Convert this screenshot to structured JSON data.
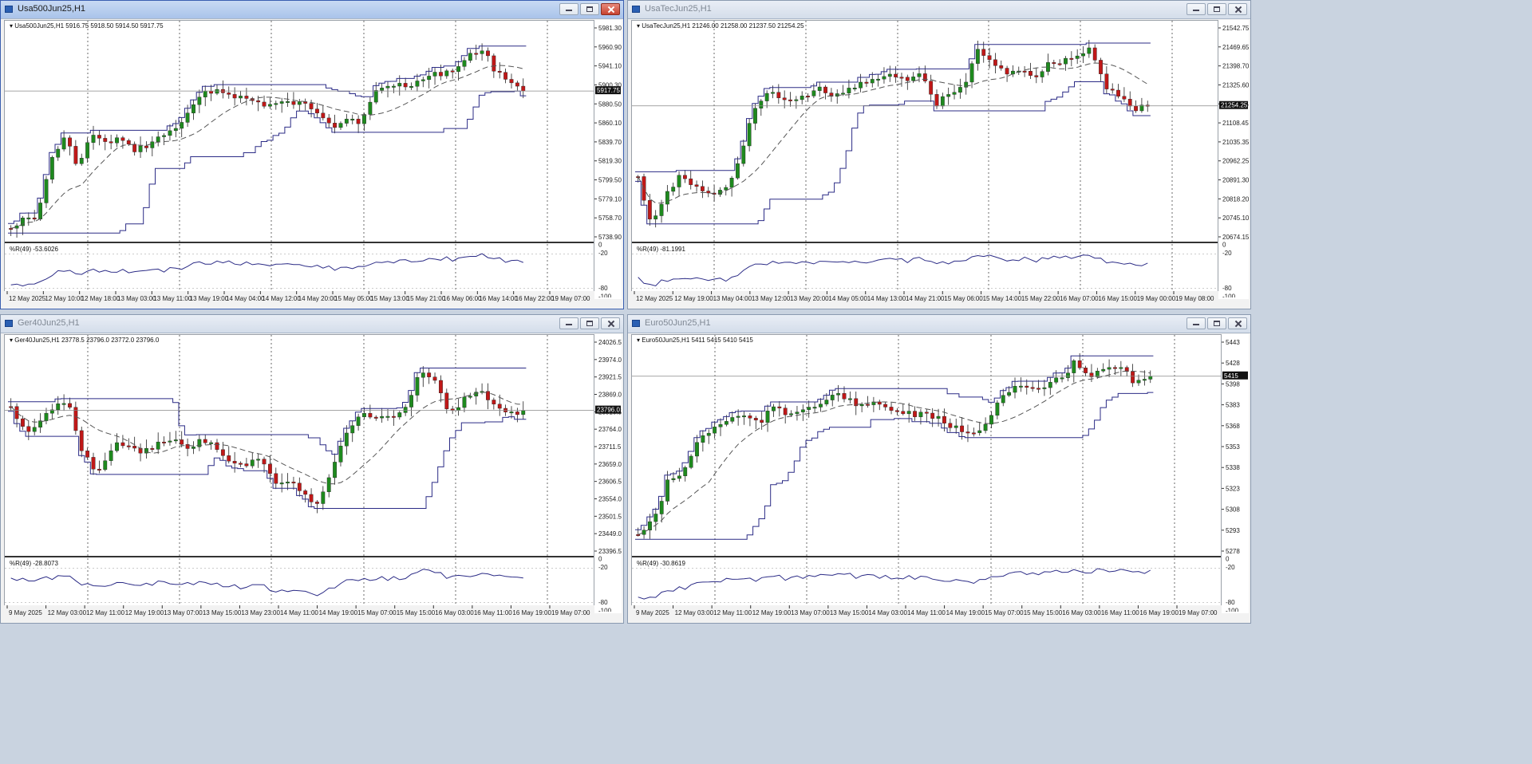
{
  "windows": [
    {
      "id": "usa500",
      "title": "Usa500Jun25,H1",
      "active": true,
      "legend": "Usa500Jun25,H1  5916.75 5918.50 5914.50 5917.75",
      "wpr_legend": "%R(49) -53.6026",
      "price_label": "5917.75",
      "price_last": 5917.75,
      "y_ticks": [
        "5981.30",
        "5960.90",
        "5941.10",
        "5900.30",
        "5880.50",
        "5860.10",
        "5839.70",
        "5819.30",
        "5799.50",
        "5779.10",
        "5758.70",
        "5738.90"
      ],
      "wpr_ticks": [
        "0",
        "-20",
        "-80",
        "-100"
      ],
      "x_ticks": [
        "12 May 2025",
        "12 May 10:00",
        "12 May 18:00",
        "13 May 03:00",
        "13 May 11:00",
        "13 May 19:00",
        "14 May 04:00",
        "14 May 12:00",
        "14 May 20:00",
        "15 May 05:00",
        "15 May 13:00",
        "15 May 21:00",
        "16 May 06:00",
        "16 May 14:00",
        "16 May 22:00",
        "19 May 07:00"
      ]
    },
    {
      "id": "usatec",
      "title": "UsaTecJun25,H1",
      "active": false,
      "legend": "UsaTecJun25,H1  21246.00 21258.00 21237.50 21254.25",
      "wpr_legend": "%R(49) -81.1991",
      "price_label": "21254.25",
      "price_last": 21254.25,
      "y_ticks": [
        "21542.75",
        "21469.65",
        "21398.70",
        "21325.60",
        "21181.55",
        "21108.45",
        "21035.35",
        "20962.25",
        "20891.30",
        "20818.20",
        "20745.10",
        "20674.15"
      ],
      "wpr_ticks": [
        "0",
        "-20",
        "-80",
        "-100"
      ],
      "x_ticks": [
        "12 May 2025",
        "12 May 19:00",
        "13 May 04:00",
        "13 May 12:00",
        "13 May 20:00",
        "14 May 05:00",
        "14 May 13:00",
        "14 May 21:00",
        "15 May 06:00",
        "15 May 14:00",
        "15 May 22:00",
        "16 May 07:00",
        "16 May 15:00",
        "19 May 00:00",
        "19 May 08:00"
      ]
    },
    {
      "id": "ger40",
      "title": "Ger40Jun25,H1",
      "active": false,
      "legend": "Ger40Jun25,H1  23778.5 23796.0 23772.0 23796.0",
      "wpr_legend": "%R(49) -28.8073",
      "price_label": "23796.0",
      "price_last": 23796.0,
      "y_ticks": [
        "24026.5",
        "23974.0",
        "23921.5",
        "23869.0",
        "23816.5",
        "23764.0",
        "23711.5",
        "23659.0",
        "23606.5",
        "23554.0",
        "23501.5",
        "23449.0",
        "23396.5"
      ],
      "wpr_ticks": [
        "0",
        "-20",
        "-80",
        "-100"
      ],
      "x_ticks": [
        "9 May 2025",
        "12 May 03:00",
        "12 May 11:00",
        "12 May 19:00",
        "13 May 07:00",
        "13 May 15:00",
        "13 May 23:00",
        "14 May 11:00",
        "14 May 19:00",
        "15 May 07:00",
        "15 May 15:00",
        "16 May 03:00",
        "16 May 11:00",
        "16 May 19:00",
        "19 May 07:00"
      ]
    },
    {
      "id": "euro50",
      "title": "Euro50Jun25,H1",
      "active": false,
      "legend": "Euro50Jun25,H1  5411 5415 5410 5415",
      "wpr_legend": "%R(49) -30.8619",
      "price_label": "5415",
      "price_last": 5415,
      "y_ticks": [
        "5443",
        "5428",
        "5398",
        "5383",
        "5368",
        "5353",
        "5338",
        "5323",
        "5308",
        "5293",
        "5278"
      ],
      "wpr_ticks": [
        "0",
        "-20",
        "-80",
        "-100"
      ],
      "x_ticks": [
        "9 May 2025",
        "12 May 03:00",
        "12 May 11:00",
        "12 May 19:00",
        "13 May 07:00",
        "13 May 15:00",
        "14 May 03:00",
        "14 May 11:00",
        "14 May 19:00",
        "15 May 07:00",
        "15 May 15:00",
        "16 May 03:00",
        "16 May 11:00",
        "16 May 19:00",
        "19 May 07:00"
      ]
    }
  ],
  "colors": {
    "bull": "#1e8a1e",
    "bear": "#c01818",
    "channel": "#2b2b86",
    "ma": "#555555",
    "grid": "#444444"
  }
}
